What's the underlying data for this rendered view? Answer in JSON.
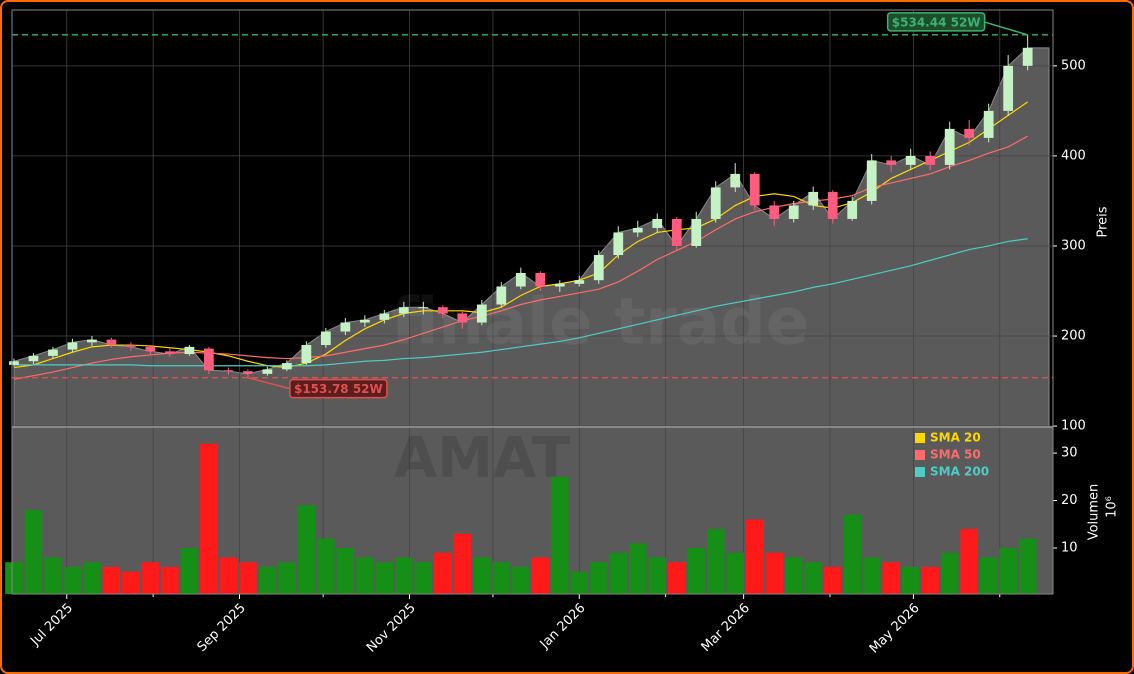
{
  "chart_data": {
    "type": "candlestick",
    "watermark": "finale trade",
    "ticker": "AMAT",
    "categories": [
      null,
      null,
      null,
      null,
      null,
      null,
      null,
      null,
      null,
      null,
      null,
      null,
      null,
      null,
      null,
      null,
      null,
      null,
      null,
      null,
      null,
      null,
      null,
      null,
      null,
      null,
      null,
      null,
      null,
      null,
      null,
      null,
      null,
      null,
      null,
      null,
      null,
      null,
      null,
      null,
      null,
      null,
      null,
      null,
      null,
      null,
      null,
      null,
      null,
      null,
      null,
      null,
      null
    ],
    "open": [
      168,
      172,
      178,
      185,
      193,
      196,
      190,
      188,
      183,
      180,
      186,
      162,
      161,
      158,
      163,
      170,
      190,
      205,
      215,
      218,
      225,
      232,
      232,
      225,
      215,
      235,
      255,
      270,
      255,
      258,
      262,
      290,
      315,
      320,
      330,
      300,
      330,
      365,
      380,
      345,
      330,
      345,
      360,
      330,
      350,
      395,
      390,
      400,
      390,
      430,
      420,
      450,
      500
    ],
    "high": [
      175,
      181,
      188,
      197,
      200,
      198,
      193,
      190,
      186,
      190,
      188,
      165,
      163,
      166,
      173,
      194,
      209,
      220,
      223,
      229,
      238,
      238,
      234,
      227,
      240,
      260,
      276,
      272,
      262,
      267,
      295,
      322,
      328,
      336,
      332,
      338,
      372,
      392,
      382,
      350,
      350,
      366,
      362,
      355,
      402,
      400,
      408,
      405,
      438,
      440,
      458,
      512,
      534.44
    ],
    "low": [
      166,
      169,
      175,
      182,
      189,
      187,
      184,
      180,
      177,
      178,
      158,
      157,
      153.78,
      156,
      161,
      168,
      187,
      201,
      210,
      214,
      221,
      224,
      220,
      208,
      212,
      232,
      252,
      250,
      249,
      255,
      258,
      286,
      310,
      315,
      295,
      298,
      326,
      360,
      340,
      322,
      326,
      340,
      325,
      328,
      346,
      382,
      385,
      384,
      385,
      412,
      415,
      445,
      495
    ],
    "close": [
      172,
      178,
      185,
      193,
      196,
      190,
      188,
      183,
      180,
      188,
      162,
      161,
      158,
      163,
      170,
      190,
      205,
      215,
      218,
      225,
      232,
      232,
      225,
      215,
      235,
      255,
      270,
      255,
      258,
      262,
      290,
      315,
      320,
      330,
      300,
      330,
      365,
      380,
      345,
      330,
      345,
      360,
      330,
      350,
      395,
      390,
      400,
      390,
      430,
      420,
      450,
      500,
      520
    ],
    "up_color": "#c4f2c4",
    "down_color": "#ff5c80",
    "area_color": "#5a5a5a",
    "series": [
      {
        "name": "SMA 20",
        "color": "#ffd700",
        "values": [
          165,
          168,
          175,
          182,
          188,
          190,
          190,
          189,
          187,
          185,
          182,
          178,
          172,
          167,
          165,
          170,
          180,
          195,
          208,
          218,
          225,
          228,
          228,
          228,
          226,
          232,
          245,
          255,
          258,
          262,
          270,
          290,
          305,
          315,
          318,
          320,
          330,
          345,
          355,
          358,
          355,
          345,
          342,
          348,
          360,
          375,
          385,
          395,
          405,
          415,
          430,
          445,
          460
        ]
      },
      {
        "name": "SMA 50",
        "color": "#ff6b6b",
        "values": [
          152,
          156,
          160,
          165,
          170,
          174,
          177,
          179,
          181,
          182,
          181,
          180,
          178,
          176,
          175,
          176,
          178,
          182,
          186,
          190,
          196,
          203,
          210,
          217,
          222,
          228,
          235,
          240,
          244,
          248,
          252,
          260,
          272,
          285,
          295,
          305,
          318,
          330,
          338,
          343,
          347,
          350,
          352,
          356,
          365,
          370,
          375,
          380,
          388,
          395,
          403,
          410,
          422
        ]
      },
      {
        "name": "SMA 200",
        "color": "#4ecdc4",
        "values": [
          168,
          168,
          168,
          168,
          168,
          168,
          168,
          167,
          167,
          167,
          167,
          167,
          167,
          167,
          167,
          167,
          168,
          170,
          172,
          173,
          175,
          176,
          178,
          180,
          182,
          185,
          188,
          191,
          194,
          198,
          203,
          208,
          213,
          218,
          223,
          228,
          233,
          237,
          241,
          245,
          249,
          254,
          258,
          263,
          268,
          273,
          278,
          284,
          290,
          296,
          300,
          305,
          308
        ]
      }
    ],
    "ylabel": "Preis",
    "ylim": [
      99,
      562
    ],
    "yticks": [
      100,
      200,
      300,
      400,
      500
    ],
    "volume": {
      "values": [
        7,
        18,
        8,
        6,
        7,
        6,
        5,
        7,
        6,
        10,
        32,
        8,
        7,
        6,
        7,
        19,
        12,
        10,
        8,
        7,
        8,
        7,
        9,
        13,
        8,
        7,
        6,
        8,
        25,
        5,
        7,
        9,
        11,
        8,
        7,
        10,
        14,
        9,
        16,
        9,
        8,
        7,
        6,
        17,
        8,
        7,
        6,
        6,
        9,
        14,
        8,
        10,
        12
      ],
      "up_color": "#158f15",
      "down_color": "#ff1a1a",
      "background": "#5a5a5a",
      "ylabel": "Volumen",
      "offset_label": "10⁶",
      "ylim": [
        0.3,
        35.5
      ],
      "yticks": [
        10,
        20,
        30
      ]
    },
    "xlim": [
      -0.1,
      53.3
    ],
    "xticks": [
      {
        "value": 2.71,
        "label": "Jul 2025"
      },
      {
        "value": 11.57,
        "label": "Sep 2025"
      },
      {
        "value": 20.29,
        "label": "Nov 2025"
      },
      {
        "value": 29,
        "label": "Jan 2026"
      },
      {
        "value": 37.43,
        "label": "Mar 2026"
      },
      {
        "value": 46.14,
        "label": "May 2026"
      }
    ],
    "xticks_minor": [
      7.14,
      15.86,
      24.57,
      33.43,
      41.86,
      50.57
    ],
    "annotations": [
      {
        "text": "$534.44 52W",
        "value": 534.44,
        "color": "#3cb371"
      },
      {
        "text": "$153.78 52W",
        "value": 153.78,
        "color": "#e05050"
      }
    ],
    "grid": true,
    "legend": "upper right"
  }
}
